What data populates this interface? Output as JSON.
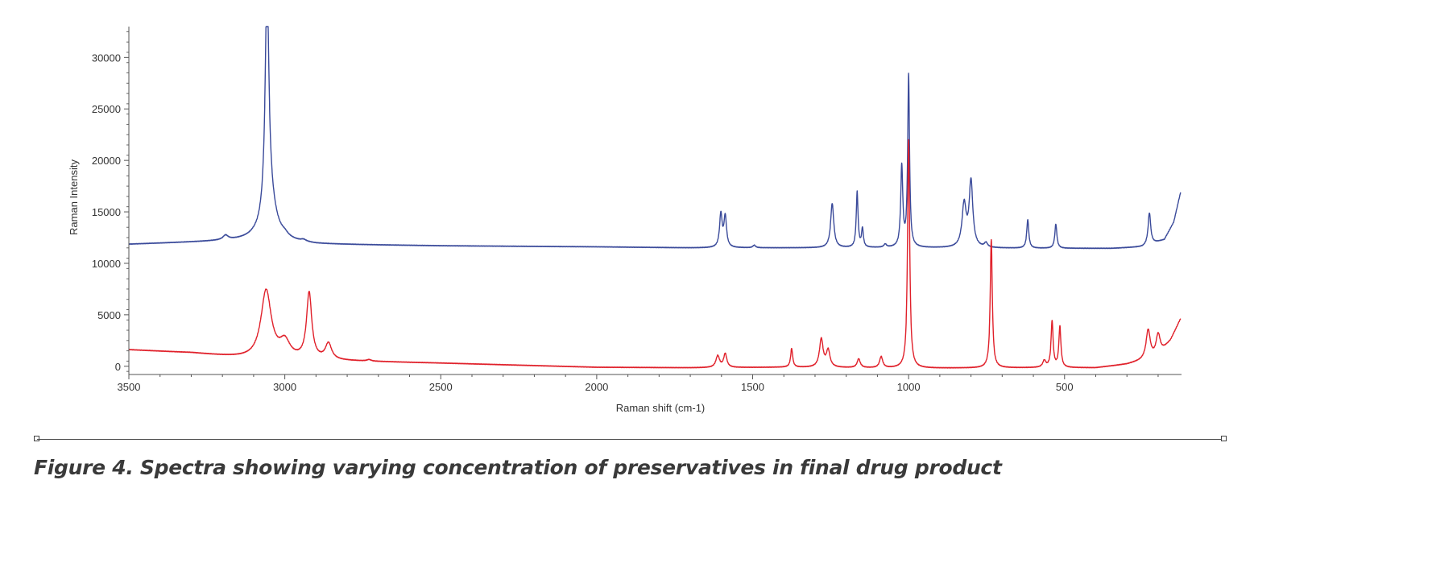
{
  "chart_data": {
    "type": "line",
    "xlabel": "Raman shift (cm-1)",
    "ylabel": "Raman Intensity",
    "xlim": [
      3500,
      125
    ],
    "ylim": [
      -800,
      33000
    ],
    "x_reversed": true,
    "grid": false,
    "x_ticks": [
      3500,
      3000,
      2500,
      2000,
      1500,
      1000,
      500
    ],
    "y_ticks": [
      0,
      5000,
      10000,
      15000,
      20000,
      25000,
      30000
    ],
    "series": [
      {
        "color": "#3a4a9a",
        "baseline": [
          [
            3500,
            11850
          ],
          [
            3300,
            12050
          ],
          [
            3100,
            12250
          ],
          [
            2900,
            11850
          ],
          [
            2500,
            11700
          ],
          [
            2000,
            11600
          ],
          [
            1700,
            11500
          ],
          [
            1400,
            11500
          ],
          [
            1000,
            11500
          ],
          [
            600,
            11450
          ],
          [
            350,
            11450
          ],
          [
            250,
            11600
          ],
          [
            180,
            12300
          ],
          [
            150,
            14000
          ],
          [
            128,
            16900
          ]
        ],
        "peaks": [
          {
            "shift": 3190,
            "intensity": 12600,
            "width": 10
          },
          {
            "shift": 3057,
            "intensity": 34000,
            "width": 7
          },
          {
            "shift": 3050,
            "intensity": 16000,
            "width": 25
          },
          {
            "shift": 3000,
            "intensity": 12300,
            "width": 12
          },
          {
            "shift": 2940,
            "intensity": 12100,
            "width": 10
          },
          {
            "shift": 1602,
            "intensity": 14700,
            "width": 5
          },
          {
            "shift": 1588,
            "intensity": 14500,
            "width": 5
          },
          {
            "shift": 1495,
            "intensity": 11750,
            "width": 5
          },
          {
            "shift": 1245,
            "intensity": 15800,
            "width": 6
          },
          {
            "shift": 1165,
            "intensity": 16900,
            "width": 3.5
          },
          {
            "shift": 1148,
            "intensity": 13300,
            "width": 3.5
          },
          {
            "shift": 1075,
            "intensity": 11800,
            "width": 5
          },
          {
            "shift": 1022,
            "intensity": 19300,
            "width": 4
          },
          {
            "shift": 1000,
            "intensity": 28200,
            "width": 3.5
          },
          {
            "shift": 822,
            "intensity": 15600,
            "width": 8
          },
          {
            "shift": 800,
            "intensity": 17800,
            "width": 7
          },
          {
            "shift": 752,
            "intensity": 11900,
            "width": 6
          },
          {
            "shift": 618,
            "intensity": 14200,
            "width": 4
          },
          {
            "shift": 528,
            "intensity": 13800,
            "width": 4
          },
          {
            "shift": 228,
            "intensity": 14900,
            "width": 5
          }
        ]
      },
      {
        "color": "#e0202a",
        "baseline": [
          [
            3500,
            1600
          ],
          [
            3300,
            1300
          ],
          [
            3100,
            700
          ],
          [
            2800,
            500
          ],
          [
            2500,
            300
          ],
          [
            2000,
            -100
          ],
          [
            1700,
            -150
          ],
          [
            1400,
            -100
          ],
          [
            1000,
            -200
          ],
          [
            600,
            -150
          ],
          [
            400,
            -150
          ],
          [
            300,
            200
          ],
          [
            200,
            900
          ],
          [
            160,
            2500
          ],
          [
            128,
            4600
          ]
        ],
        "peaks": [
          {
            "shift": 3060,
            "intensity": 7300,
            "width": 20
          },
          {
            "shift": 3000,
            "intensity": 2200,
            "width": 20
          },
          {
            "shift": 2922,
            "intensity": 7000,
            "width": 10
          },
          {
            "shift": 2860,
            "intensity": 2100,
            "width": 12
          },
          {
            "shift": 2730,
            "intensity": 600,
            "width": 8
          },
          {
            "shift": 1612,
            "intensity": 1000,
            "width": 7
          },
          {
            "shift": 1588,
            "intensity": 1200,
            "width": 6
          },
          {
            "shift": 1375,
            "intensity": 1700,
            "width": 4
          },
          {
            "shift": 1280,
            "intensity": 2600,
            "width": 7
          },
          {
            "shift": 1258,
            "intensity": 1500,
            "width": 7
          },
          {
            "shift": 1160,
            "intensity": 700,
            "width": 6
          },
          {
            "shift": 1088,
            "intensity": 900,
            "width": 6
          },
          {
            "shift": 1000,
            "intensity": 22000,
            "width": 4
          },
          {
            "shift": 735,
            "intensity": 12300,
            "width": 4
          },
          {
            "shift": 565,
            "intensity": 500,
            "width": 6
          },
          {
            "shift": 540,
            "intensity": 4300,
            "width": 4
          },
          {
            "shift": 515,
            "intensity": 3800,
            "width": 4
          },
          {
            "shift": 232,
            "intensity": 3500,
            "width": 8
          },
          {
            "shift": 200,
            "intensity": 3100,
            "width": 8
          }
        ]
      }
    ]
  },
  "caption": "Figure 4. Spectra showing varying concentration of preservatives in final drug product"
}
